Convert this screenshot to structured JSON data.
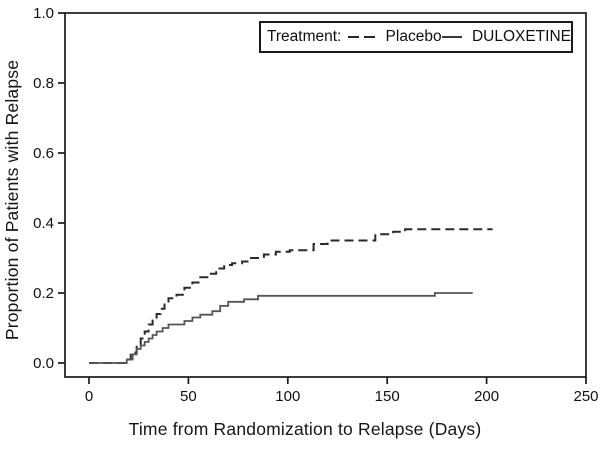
{
  "figure": {
    "background": "#ffffff",
    "frame_color": "#1a1a1a",
    "tick_label_color": "#111111"
  },
  "legend": {
    "title": "Treatment:",
    "entries": [
      {
        "label": "Placebo",
        "line_style": "dashed",
        "color": "#2a2a2a"
      },
      {
        "label": "DULOXETINE",
        "line_style": "solid",
        "color": "#3a3a3a"
      }
    ]
  },
  "chart_data": {
    "type": "line",
    "subtype": "kaplan-meier-step",
    "title": "",
    "xlabel": "Time from Randomization to Relapse (Days)",
    "ylabel": "Proportion of Patients with Relapse",
    "xlim": [
      0,
      250
    ],
    "ylim": [
      0.0,
      1.0
    ],
    "x_ticks": [
      0,
      50,
      100,
      150,
      200,
      250
    ],
    "y_tick_labels": [
      "0.0",
      "0.2",
      "0.4",
      "0.6",
      "0.8",
      "1.0"
    ],
    "grid": false,
    "legend_position": "top-right",
    "series": [
      {
        "name": "Placebo",
        "style": "dashed",
        "color": "#2a2a2a",
        "points": [
          [
            0,
            0
          ],
          [
            19,
            0.01
          ],
          [
            21,
            0.03
          ],
          [
            24,
            0.05
          ],
          [
            26,
            0.07
          ],
          [
            28,
            0.09
          ],
          [
            30,
            0.11
          ],
          [
            32,
            0.125
          ],
          [
            34,
            0.14
          ],
          [
            36,
            0.155
          ],
          [
            38,
            0.17
          ],
          [
            40,
            0.185
          ],
          [
            44,
            0.195
          ],
          [
            48,
            0.215
          ],
          [
            52,
            0.23
          ],
          [
            56,
            0.245
          ],
          [
            60,
            0.255
          ],
          [
            64,
            0.27
          ],
          [
            68,
            0.28
          ],
          [
            72,
            0.285
          ],
          [
            77,
            0.29
          ],
          [
            81,
            0.3
          ],
          [
            88,
            0.31
          ],
          [
            94,
            0.318
          ],
          [
            101,
            0.322
          ],
          [
            113,
            0.34
          ],
          [
            120,
            0.35
          ],
          [
            144,
            0.368
          ],
          [
            153,
            0.375
          ],
          [
            159,
            0.382
          ],
          [
            203,
            0.382
          ]
        ]
      },
      {
        "name": "DULOXETINE",
        "style": "solid",
        "color": "#555555",
        "points": [
          [
            0,
            0
          ],
          [
            19,
            0.01
          ],
          [
            22,
            0.025
          ],
          [
            24,
            0.04
          ],
          [
            26,
            0.05
          ],
          [
            28,
            0.06
          ],
          [
            30,
            0.07
          ],
          [
            32,
            0.08
          ],
          [
            34,
            0.09
          ],
          [
            37,
            0.1
          ],
          [
            40,
            0.11
          ],
          [
            48,
            0.12
          ],
          [
            52,
            0.13
          ],
          [
            56,
            0.138
          ],
          [
            62,
            0.148
          ],
          [
            66,
            0.163
          ],
          [
            70,
            0.175
          ],
          [
            78,
            0.182
          ],
          [
            85,
            0.192
          ],
          [
            174,
            0.2
          ],
          [
            193,
            0.2
          ]
        ]
      }
    ]
  }
}
